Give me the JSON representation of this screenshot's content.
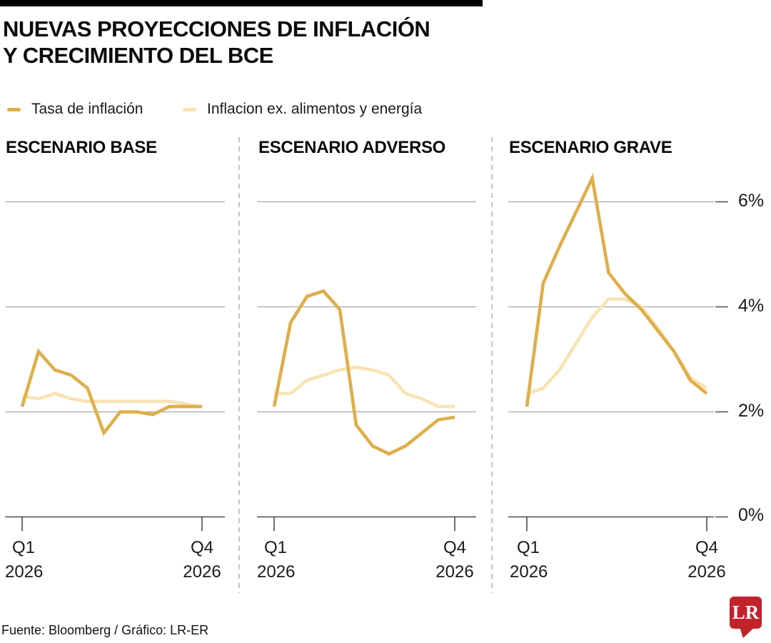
{
  "title": {
    "line1": "NUEVAS PROYECCIONES DE INFLACIÓN",
    "line2": "Y CRECIMIENTO DEL BCE"
  },
  "legend": [
    {
      "label": "Tasa de inflación",
      "color": "#DFAE4A"
    },
    {
      "label": "Inflacion ex. alimentos y energía",
      "color": "#F9E3B3"
    }
  ],
  "y_axis": {
    "ticks": [
      "6%",
      "4%",
      "2%",
      "0%"
    ],
    "values": [
      6,
      4,
      2,
      0
    ]
  },
  "footer": "Fuente: Bloomberg / Gráfico: LR-ER",
  "logo": {
    "text": "LR",
    "color": "#C2232B"
  },
  "colors": {
    "grid": "#999999",
    "axis": "#4d4d4d",
    "separator": "#b5b5b5"
  },
  "chart_data": [
    {
      "type": "line",
      "title": "ESCENARIO BASE",
      "x_first_q": "Q1",
      "x_first_year": "2026",
      "x_last_q": "Q4",
      "x_last_year": "2026",
      "ylim": [
        0,
        7
      ],
      "yticks": [
        0,
        2,
        4,
        6
      ],
      "grid": true,
      "series": [
        {
          "name": "Tasa de inflación",
          "color": "#DFAE4A",
          "values": [
            2.1,
            3.15,
            2.8,
            2.7,
            2.45,
            1.6,
            2.0,
            2.0,
            1.95,
            2.1,
            2.1,
            2.1
          ]
        },
        {
          "name": "Inflacion ex. alimentos y energía",
          "color": "#F9E3B3",
          "values": [
            2.3,
            2.25,
            2.35,
            2.25,
            2.2,
            2.2,
            2.2,
            2.2,
            2.2,
            2.2,
            2.15,
            2.1
          ]
        }
      ]
    },
    {
      "type": "line",
      "title": "ESCENARIO ADVERSO",
      "x_first_q": "Q1",
      "x_first_year": "2026",
      "x_last_q": "Q4",
      "x_last_year": "2026",
      "ylim": [
        0,
        7
      ],
      "yticks": [
        0,
        2,
        4,
        6
      ],
      "grid": true,
      "series": [
        {
          "name": "Tasa de inflación",
          "color": "#DFAE4A",
          "values": [
            2.1,
            3.7,
            4.2,
            4.3,
            3.95,
            1.75,
            1.35,
            1.2,
            1.35,
            1.6,
            1.85,
            1.9
          ]
        },
        {
          "name": "Inflacion ex. alimentos y energía",
          "color": "#F9E3B3",
          "values": [
            2.35,
            2.35,
            2.6,
            2.7,
            2.8,
            2.85,
            2.8,
            2.7,
            2.35,
            2.25,
            2.1,
            2.1
          ]
        }
      ]
    },
    {
      "type": "line",
      "title": "ESCENARIO GRAVE",
      "x_first_q": "Q1",
      "x_first_year": "2026",
      "x_last_q": "Q4",
      "x_last_year": "2026",
      "ylim": [
        0,
        7
      ],
      "yticks": [
        0,
        2,
        4,
        6
      ],
      "grid": true,
      "series": [
        {
          "name": "Tasa de inflación",
          "color": "#DFAE4A",
          "values": [
            2.1,
            4.45,
            5.15,
            5.8,
            6.45,
            4.65,
            4.25,
            3.95,
            3.55,
            3.15,
            2.6,
            2.35
          ]
        },
        {
          "name": "Inflacion ex. alimentos y energía",
          "color": "#F9E3B3",
          "values": [
            2.35,
            2.45,
            2.8,
            3.3,
            3.8,
            4.15,
            4.15,
            4.0,
            3.6,
            3.15,
            2.65,
            2.45
          ]
        }
      ]
    }
  ]
}
